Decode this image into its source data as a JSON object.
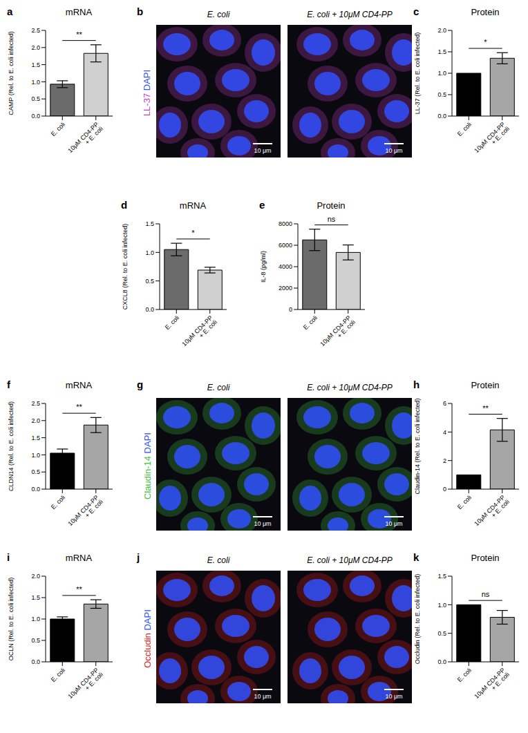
{
  "chart_data": [
    {
      "panel": "a",
      "type": "bar",
      "title": "mRNA",
      "y_label": "CAMP (Rel. to E. coli infected)",
      "categories": [
        "E. coli",
        "10μM CD4-PP + E. coli"
      ],
      "values": [
        0.93,
        1.83
      ],
      "errors": [
        0.1,
        0.25
      ],
      "colors": [
        "#6b6b6b",
        "#d0d0d0"
      ],
      "ylim": [
        0,
        2.5
      ],
      "yticks": [
        {
          "value": 0,
          "label": "0.0"
        },
        {
          "value": 0.5,
          "label": "0.5"
        },
        {
          "value": 1,
          "label": "1.0"
        },
        {
          "value": 1.5,
          "label": "1.5"
        },
        {
          "value": 2,
          "label": "2.0"
        },
        {
          "value": 2.5,
          "label": "2.5"
        }
      ],
      "annotation": "**"
    },
    {
      "panel": "c",
      "type": "bar",
      "title": "Protein",
      "y_label": "LL-37 (Rel. to E. coli infected)",
      "categories": [
        "E. coli",
        "10μM CD4-PP + E. coli"
      ],
      "values": [
        1.0,
        1.35
      ],
      "errors": [
        0,
        0.13
      ],
      "colors": [
        "#000000",
        "#a6a6a6"
      ],
      "ylim": [
        0,
        2
      ],
      "yticks": [
        {
          "value": 0,
          "label": "0.0"
        },
        {
          "value": 0.5,
          "label": "0.5"
        },
        {
          "value": 1,
          "label": "1.0"
        },
        {
          "value": 1.5,
          "label": "1.5"
        },
        {
          "value": 2,
          "label": "2.0"
        }
      ],
      "annotation": "*"
    },
    {
      "panel": "d",
      "type": "bar",
      "title": "mRNA",
      "y_label": "CXCL8 (Rel. to E. coli infected)",
      "categories": [
        "E. coli",
        "10μM CD4-PP + E. coli"
      ],
      "values": [
        1.05,
        0.69
      ],
      "errors": [
        0.11,
        0.05
      ],
      "colors": [
        "#6b6b6b",
        "#d0d0d0"
      ],
      "ylim": [
        0,
        1.5
      ],
      "yticks": [
        {
          "value": 0,
          "label": "0.0"
        },
        {
          "value": 0.5,
          "label": "0.5"
        },
        {
          "value": 1,
          "label": "1.0"
        },
        {
          "value": 1.5,
          "label": "1.5"
        }
      ],
      "annotation": "*"
    },
    {
      "panel": "e",
      "type": "bar",
      "title": "Protein",
      "y_label": "IL-8 (pg/ml)",
      "categories": [
        "E. coli",
        "10μM CD4-PP + E. coli"
      ],
      "values": [
        6500,
        5330
      ],
      "errors": [
        1000,
        700
      ],
      "colors": [
        "#6b6b6b",
        "#d0d0d0"
      ],
      "ylim": [
        0,
        8000
      ],
      "yticks": [
        0,
        2000,
        4000,
        6000,
        8000
      ],
      "annotation": "ns"
    },
    {
      "panel": "f",
      "type": "bar",
      "title": "mRNA",
      "y_label": "CLDN14 (Rel. to E. coli infected)",
      "categories": [
        "E. coli",
        "10μM CD4-PP + E. coli"
      ],
      "values": [
        1.05,
        1.87
      ],
      "errors": [
        0.12,
        0.22
      ],
      "colors": [
        "#000000",
        "#a6a6a6"
      ],
      "ylim": [
        0,
        2.5
      ],
      "yticks": [
        {
          "value": 0,
          "label": "0.0"
        },
        {
          "value": 0.5,
          "label": "0.5"
        },
        {
          "value": 1,
          "label": "1.0"
        },
        {
          "value": 1.5,
          "label": "1.5"
        },
        {
          "value": 2,
          "label": "2.0"
        },
        {
          "value": 2.5,
          "label": "2.5"
        }
      ],
      "annotation": "**"
    },
    {
      "panel": "h",
      "type": "bar",
      "title": "Protein",
      "y_label": "Claudin-14 (Rel. to E. coli infected)",
      "categories": [
        "E. coli",
        "10μM CD4-PP + E. coli"
      ],
      "values": [
        1.0,
        4.15
      ],
      "errors": [
        0,
        0.8
      ],
      "colors": [
        "#000000",
        "#a6a6a6"
      ],
      "ylim": [
        0,
        6
      ],
      "yticks": [
        0,
        2,
        4,
        6
      ],
      "annotation": "**"
    },
    {
      "panel": "i",
      "type": "bar",
      "title": "mRNA",
      "y_label": "OCLN (Rel. to E. coli infected)",
      "categories": [
        "E. coli",
        "10μM CD4-PP + E. coli"
      ],
      "values": [
        1.0,
        1.35
      ],
      "errors": [
        0.05,
        0.1
      ],
      "colors": [
        "#000000",
        "#a6a6a6"
      ],
      "ylim": [
        0,
        2
      ],
      "yticks": [
        {
          "value": 0,
          "label": "0.0"
        },
        {
          "value": 0.5,
          "label": "0.5"
        },
        {
          "value": 1,
          "label": "1.0"
        },
        {
          "value": 1.5,
          "label": "1.5"
        },
        {
          "value": 2,
          "label": "2.0"
        }
      ],
      "annotation": "**"
    },
    {
      "panel": "k",
      "type": "bar",
      "title": "Protein",
      "y_label": "Occludin (Rel. to E. coli infected)",
      "categories": [
        "E. coli",
        "10μM CD4-PP + E. coli"
      ],
      "values": [
        1.0,
        0.78
      ],
      "errors": [
        0,
        0.12
      ],
      "colors": [
        "#000000",
        "#a6a6a6"
      ],
      "ylim": [
        0,
        1.5
      ],
      "yticks": [
        {
          "value": 0,
          "label": "0.0"
        },
        {
          "value": 0.5,
          "label": "0.5"
        },
        {
          "value": 1,
          "label": "1.0"
        },
        {
          "value": 1.5,
          "label": "1.5"
        }
      ],
      "annotation": "ns"
    }
  ],
  "images": [
    {
      "panel": "b",
      "titles": [
        "E. coli",
        "E. coli + 10μM CD4-PP"
      ],
      "stains": [
        {
          "name": "LL-37",
          "color": "#c040c0"
        },
        {
          "name": "DAPI",
          "color": "#3050ff"
        }
      ],
      "scale_bar": "10 μm"
    },
    {
      "panel": "g",
      "titles": [
        "E. coli",
        "E. coli + 10μM CD4-PP"
      ],
      "stains": [
        {
          "name": "Claudin-14",
          "color": "#40c040"
        },
        {
          "name": "DAPI",
          "color": "#3050ff"
        }
      ],
      "scale_bar": "10 μm"
    },
    {
      "panel": "j",
      "titles": [
        "E. coli",
        "E. coli + 10μM CD4-PP"
      ],
      "stains": [
        {
          "name": "Occludin",
          "color": "#e02020"
        },
        {
          "name": "DAPI",
          "color": "#3050ff"
        }
      ],
      "scale_bar": "10 μm"
    }
  ]
}
